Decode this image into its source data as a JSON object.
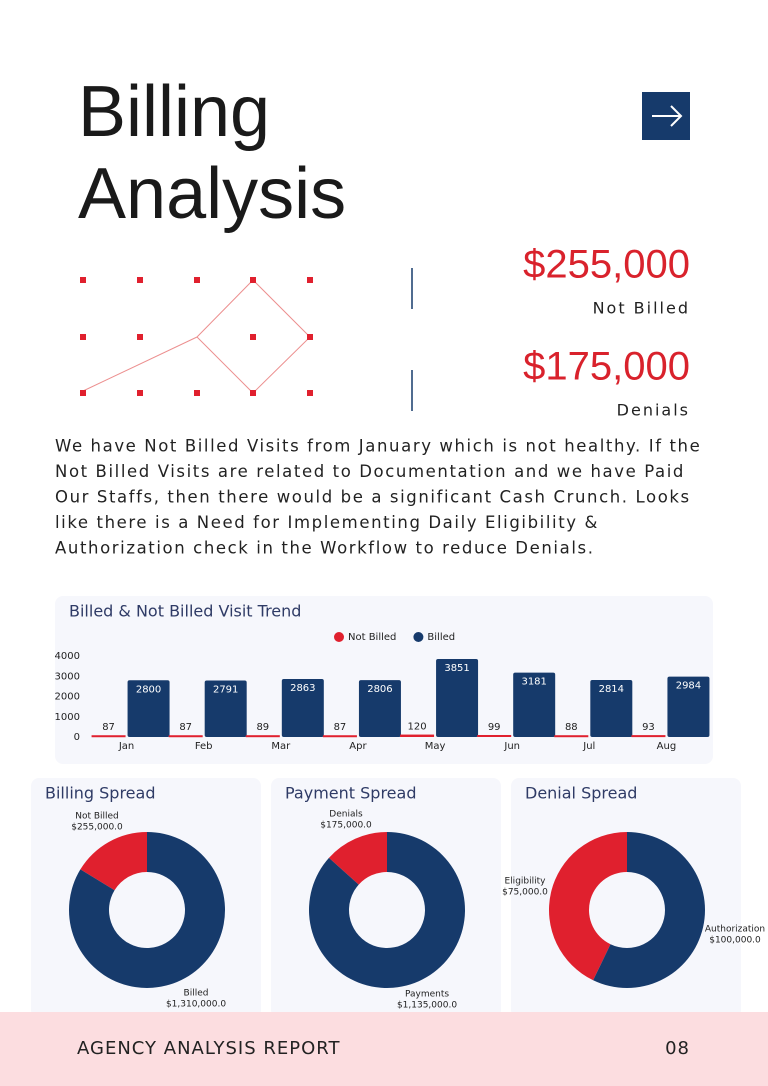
{
  "header": {
    "title": [
      "Billing",
      "Analysis"
    ]
  },
  "kpis": [
    {
      "value": "$255,000",
      "label": "Not Billed"
    },
    {
      "value": "$175,000",
      "label": "Denials"
    }
  ],
  "paragraph": [
    "We have Not Billed Visits from January which is not healthy. If the",
    "Not Billed Visits are related to Documentation and we have Paid",
    "Our Staffs, then there would be a significant Cash Crunch. Looks",
    "like there is a Need for Implementing Daily Eligibility &",
    "Authorization check in the Workflow to reduce Denials."
  ],
  "chart_data": [
    {
      "type": "bar",
      "title": "Billed & Not Billed Visit Trend",
      "categories": [
        "Jan",
        "Feb",
        "Mar",
        "Apr",
        "May",
        "Jun",
        "Jul",
        "Aug"
      ],
      "series": [
        {
          "name": "Not Billed",
          "color": "#e0202e",
          "values": [
            87,
            87,
            89,
            87,
            120,
            99,
            88,
            93
          ]
        },
        {
          "name": "Billed",
          "color": "#163a6b",
          "values": [
            2800,
            2791,
            2863,
            2806,
            3851,
            3181,
            2814,
            2984
          ]
        }
      ],
      "ylim": [
        0,
        4000
      ],
      "yticks": [
        0,
        1000,
        2000,
        3000,
        4000
      ],
      "grid": false,
      "legend": "top"
    },
    {
      "type": "pie",
      "title": "Billing Spread",
      "categories": [
        "Not Billed",
        "Billed"
      ],
      "values": [
        255000,
        1310000
      ],
      "value_labels": [
        "$255,000.0",
        "$1,310,000.0"
      ],
      "colors": [
        "#e0202e",
        "#163a6b"
      ]
    },
    {
      "type": "pie",
      "title": "Payment Spread",
      "categories": [
        "Denials",
        "Payments"
      ],
      "values": [
        175000,
        1135000
      ],
      "value_labels": [
        "$175,000.0",
        "$1,135,000.0"
      ],
      "colors": [
        "#e0202e",
        "#163a6b"
      ]
    },
    {
      "type": "pie",
      "title": "Denial Spread",
      "categories": [
        "Eligibility",
        "Authorization"
      ],
      "values": [
        75000,
        100000
      ],
      "value_labels": [
        "$75,000.0",
        "$100,000.0"
      ],
      "colors": [
        "#e0202e",
        "#163a6b"
      ]
    }
  ],
  "footer": {
    "report": "AGENCY ANALYSIS REPORT",
    "page": "08"
  }
}
